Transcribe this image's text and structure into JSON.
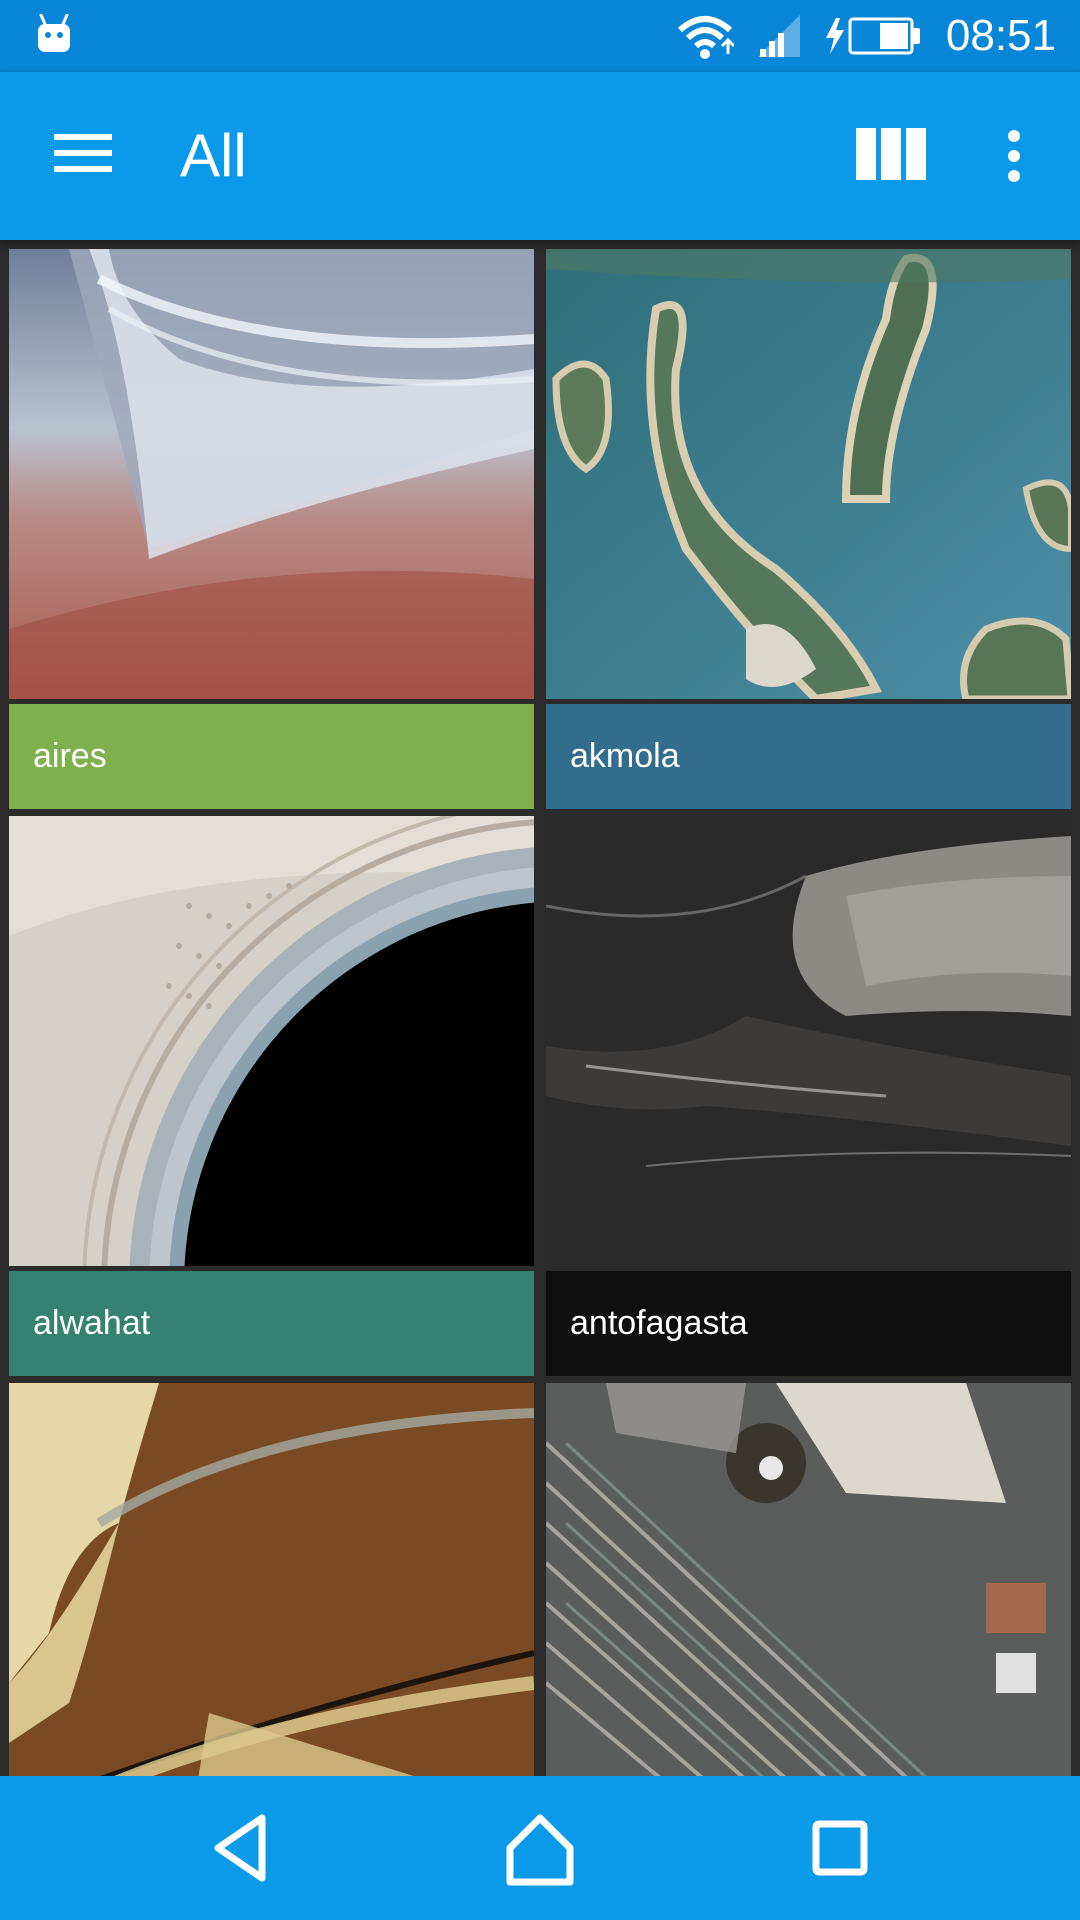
{
  "status_bar": {
    "time": "08:51",
    "icons": [
      "android-icon",
      "wifi-icon",
      "cell-signal-icon",
      "battery-charging-icon"
    ]
  },
  "app_bar": {
    "title": "All",
    "icons": [
      "menu-icon",
      "grid-view-icon",
      "more-vert-icon"
    ]
  },
  "tiles": [
    {
      "label": "aires",
      "caption_color": "#7fb04d"
    },
    {
      "label": "akmola",
      "caption_color": "#336d8e"
    },
    {
      "label": "alwahat",
      "caption_color": "#358270"
    },
    {
      "label": "antofagasta",
      "caption_color": "#0f0f0f"
    },
    {
      "label": "",
      "caption_color": ""
    },
    {
      "label": "",
      "caption_color": ""
    }
  ],
  "nav_bar": {
    "icons": [
      "back-icon",
      "home-icon",
      "recents-icon"
    ]
  },
  "colors": {
    "primary": "#0a9ae9",
    "status_bar": "#0a86d8",
    "grid_background": "#2b2b2b"
  }
}
